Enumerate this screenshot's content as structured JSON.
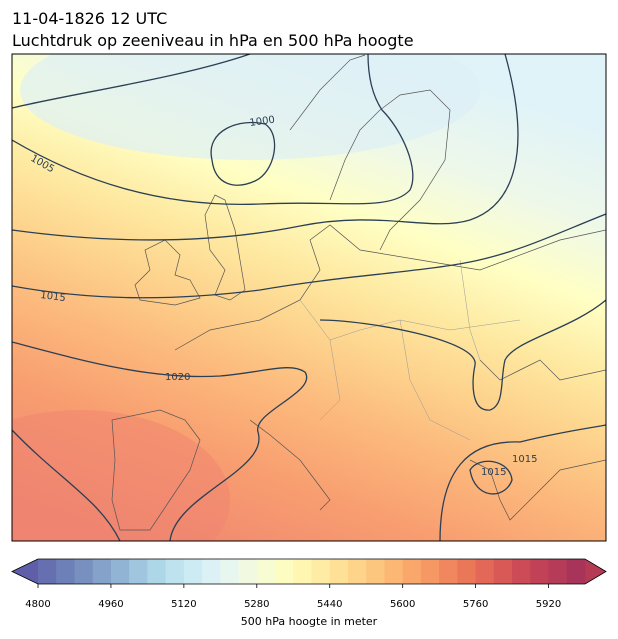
{
  "header": {
    "date": "11-04-1826 12 UTC",
    "title": "Luchtdruk op zeeniveau in hPa en 500 hPa hoogte"
  },
  "isobar_labels": [
    1000,
    1005,
    1015,
    1020,
    1015,
    1015
  ],
  "colorbar": {
    "label": "500 hPa hoogte in meter",
    "lim": [
      4800,
      6000
    ],
    "ticks": [
      4800,
      4960,
      5120,
      5280,
      5440,
      5600,
      5760,
      5920
    ],
    "under_color": "#5e5fa8",
    "over_color": "#b73a55",
    "colors": [
      "#6670b0",
      "#6d80b8",
      "#7890c0",
      "#84a2ca",
      "#91b4d4",
      "#9fc6de",
      "#add6e6",
      "#bee3ee",
      "#cdebf2",
      "#dcf1f5",
      "#e8f6f0",
      "#f1f9e0",
      "#f8fcd2",
      "#fdfdc2",
      "#fff6b2",
      "#feeca4",
      "#fee197",
      "#fdd48a",
      "#fdc67e",
      "#fcb774",
      "#faa76b",
      "#f69864",
      "#f1875e",
      "#eb7759",
      "#e36857",
      "#d95956",
      "#cd4b56",
      "#c14257",
      "#b53b58",
      "#a9345a"
    ]
  }
}
